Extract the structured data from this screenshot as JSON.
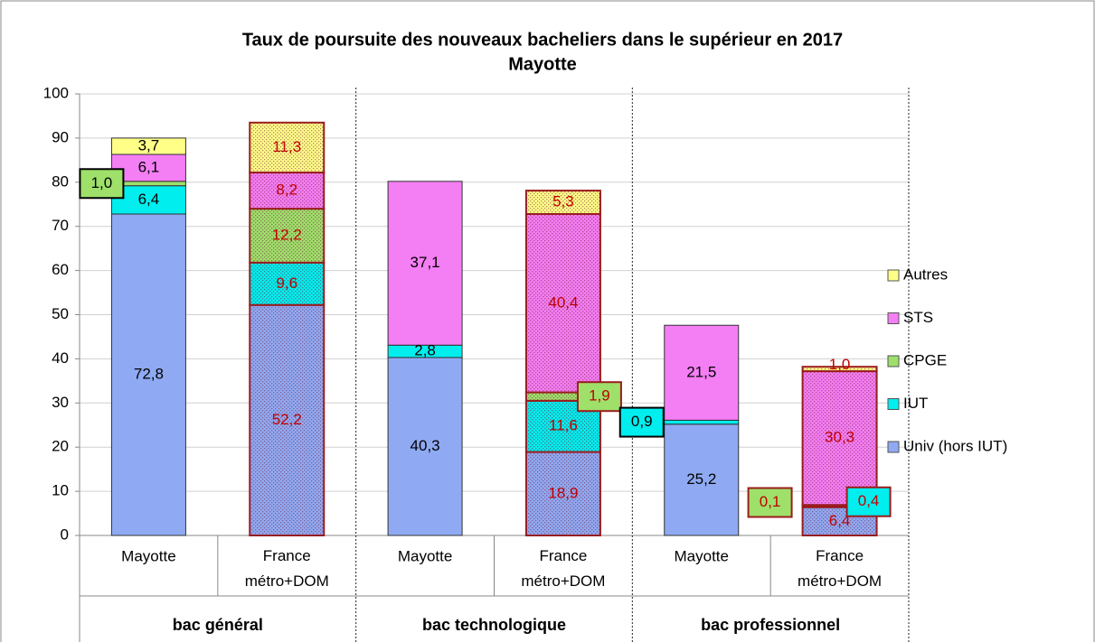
{
  "chart_data": {
    "type": "stacked_bar",
    "title": "Taux de poursuite des nouveaux bacheliers dans le supérieur en 2017",
    "subtitle": "Mayotte",
    "categories": [
      "Mayotte",
      "France métro+DOM",
      "Mayotte",
      "France métro+DOM",
      "Mayotte",
      "France métro+DOM"
    ],
    "groups": [
      "bac général",
      "bac technologique",
      "bac professionnel"
    ],
    "series": [
      {
        "name": "Univ (hors IUT)",
        "color": "#8faaf3",
        "values": [
          72.8,
          52.2,
          40.3,
          18.9,
          25.2,
          6.4
        ],
        "value_labels": [
          "72,8",
          "52,2",
          "40,3",
          "18,9",
          "25,2",
          "6,4"
        ]
      },
      {
        "name": "IUT",
        "color": "#00eeee",
        "values": [
          6.4,
          9.6,
          2.8,
          11.6,
          0.9,
          0.4
        ],
        "value_labels": [
          "6,4",
          "9,6",
          "2,8",
          "11,6",
          "0,9",
          "0,4"
        ]
      },
      {
        "name": "CPGE",
        "color": "#9ee06a",
        "values": [
          1.0,
          12.2,
          null,
          1.9,
          null,
          0.1
        ],
        "value_labels": [
          "1,0",
          "12,2",
          null,
          "1,9",
          null,
          "0,1"
        ]
      },
      {
        "name": "STS",
        "color": "#f47ef4",
        "values": [
          6.1,
          8.2,
          37.1,
          40.4,
          21.5,
          30.3
        ],
        "value_labels": [
          "6,1",
          "8,2",
          "37,1",
          "40,4",
          "21,5",
          "30,3"
        ]
      },
      {
        "name": "Autres",
        "color": "#ffff88",
        "values": [
          3.7,
          11.3,
          null,
          5.3,
          null,
          1.0
        ],
        "value_labels": [
          "3,7",
          "11,3",
          null,
          "5,3",
          null,
          "1,0"
        ]
      }
    ],
    "ylim": [
      0,
      100
    ],
    "yticks": [
      0,
      10,
      20,
      30,
      40,
      50,
      60,
      70,
      80,
      90,
      100
    ],
    "grid": true,
    "legend": "right"
  }
}
